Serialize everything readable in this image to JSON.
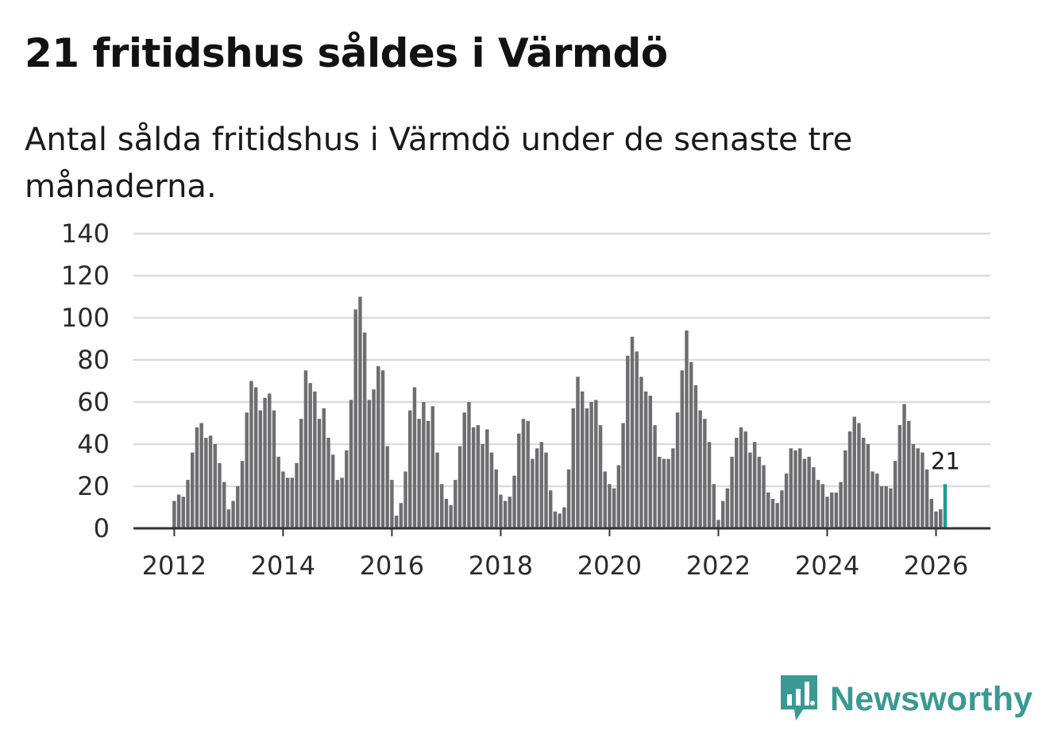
{
  "header": {
    "title": "21 fritidshus såldes i Värmdö",
    "subtitle": "Antal sålda fritidshus i Värmdö under de senaste tre månaderna."
  },
  "brand": {
    "name": "Newsworthy",
    "color": "#3a9a93",
    "icon": "bar-chart-speech-bubble-icon"
  },
  "chart_data": {
    "type": "bar",
    "title": "21 fritidshus såldes i Värmdö",
    "subtitle": "Antal sålda fritidshus i Värmdö under de senaste tre månaderna.",
    "xlabel": "",
    "ylabel": "",
    "ylim": [
      0,
      140
    ],
    "yticks": [
      0,
      20,
      40,
      60,
      80,
      100,
      120,
      140
    ],
    "xticks": [
      2012,
      2014,
      2016,
      2018,
      2020,
      2022,
      2024,
      2026
    ],
    "xlim": [
      2011.25,
      2027.0
    ],
    "grid": true,
    "bar_color": "#6e6d71",
    "highlight_color": "#1c9e93",
    "start_month": "2012-01",
    "series": [
      {
        "name": "Antal sålda fritidshus",
        "values": [
          13,
          16,
          15,
          23,
          36,
          48,
          50,
          43,
          44,
          40,
          31,
          22,
          9,
          13,
          20,
          32,
          55,
          70,
          67,
          56,
          62,
          64,
          56,
          34,
          27,
          24,
          24,
          31,
          52,
          75,
          69,
          65,
          52,
          57,
          43,
          35,
          23,
          24,
          37,
          61,
          104,
          110,
          93,
          61,
          66,
          77,
          75,
          39,
          23,
          6,
          12,
          27,
          56,
          67,
          52,
          60,
          51,
          58,
          36,
          21,
          14,
          11,
          23,
          39,
          55,
          60,
          48,
          49,
          40,
          47,
          36,
          28,
          16,
          13,
          15,
          25,
          45,
          52,
          51,
          33,
          38,
          41,
          36,
          18,
          8,
          7,
          10,
          28,
          57,
          72,
          65,
          57,
          60,
          61,
          49,
          27,
          21,
          19,
          30,
          50,
          82,
          91,
          84,
          72,
          65,
          63,
          49,
          34,
          33,
          33,
          38,
          55,
          75,
          94,
          79,
          68,
          56,
          52,
          41,
          21,
          4,
          13,
          19,
          34,
          43,
          48,
          46,
          36,
          41,
          34,
          30,
          17,
          14,
          12,
          18,
          26,
          38,
          37,
          38,
          33,
          34,
          29,
          23,
          21,
          15,
          17,
          17,
          22,
          37,
          46,
          53,
          50,
          43,
          40,
          27,
          26,
          20,
          20,
          19,
          32,
          49,
          59,
          51,
          40,
          38,
          36,
          28,
          14,
          8,
          9,
          21
        ]
      }
    ],
    "highlight": {
      "date": "2026-03",
      "value": 21,
      "label": "21"
    }
  }
}
